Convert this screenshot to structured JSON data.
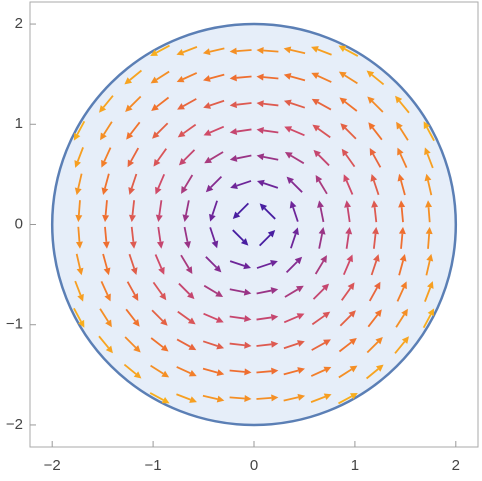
{
  "chart_data": {
    "type": "vector",
    "region_radius": 2,
    "region_fill": "#e6eef9",
    "region_stroke": "#5b7fb5",
    "points": {
      "x": [
        -1.733,
        -1.467,
        -1.2,
        -0.933,
        -0.667,
        -0.4,
        -0.133,
        0.133,
        0.4,
        0.667,
        0.933,
        1.2,
        1.467,
        1.733
      ],
      "y": [
        -1.733,
        -1.467,
        -1.2,
        -0.933,
        -0.667,
        -0.4,
        -0.133,
        0.133,
        0.4,
        0.667,
        0.933,
        1.2,
        1.467,
        1.733
      ]
    },
    "colors": [
      "#2a18a8",
      "#7a2896",
      "#cf4a6a",
      "#f0702e",
      "#f9b21c"
    ],
    "xlim": [
      -2.22,
      2.22
    ],
    "ylim": [
      -2.22,
      2.22
    ],
    "xticks": [
      {
        "value": -2,
        "label": "−2"
      },
      {
        "value": -1,
        "label": "−1"
      },
      0,
      1,
      2
    ],
    "yticks": [
      {
        "value": -2,
        "label": "−2"
      },
      {
        "value": -1,
        "label": "−1"
      },
      0,
      1,
      2
    ]
  }
}
